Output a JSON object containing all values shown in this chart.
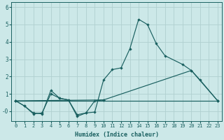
{
  "xlabel": "Humidex (Indice chaleur)",
  "background_color": "#cce8e8",
  "grid_color": "#b0d0d0",
  "line_color": "#1a6060",
  "x_values": [
    0,
    1,
    2,
    3,
    4,
    5,
    6,
    7,
    8,
    9,
    10,
    11,
    12,
    13,
    14,
    15,
    16,
    17,
    18,
    19,
    20,
    21,
    22,
    23
  ],
  "series1_x": [
    0,
    1,
    2,
    3,
    4,
    5,
    6,
    7,
    8,
    9,
    10,
    11,
    12,
    13,
    14,
    15,
    16,
    17,
    19,
    20,
    21,
    23
  ],
  "series1_y": [
    0.6,
    0.3,
    -0.1,
    -0.15,
    1.2,
    0.75,
    0.65,
    -0.3,
    -0.1,
    -0.05,
    1.8,
    2.4,
    2.5,
    3.6,
    5.3,
    5.0,
    3.9,
    3.2,
    2.7,
    2.35,
    1.8,
    0.6
  ],
  "series2_x": [
    0,
    1,
    2,
    3,
    4,
    5,
    6,
    7,
    8,
    9,
    10
  ],
  "series2_y": [
    0.6,
    0.3,
    -0.15,
    -0.1,
    1.0,
    0.75,
    0.65,
    -0.2,
    -0.1,
    0.6,
    0.65
  ],
  "series3_x": [
    0,
    10,
    20,
    23
  ],
  "series3_y": [
    0.6,
    0.65,
    2.35,
    0.6
  ],
  "series4_x": [
    0,
    23
  ],
  "series4_y": [
    0.6,
    0.6
  ],
  "ylim": [
    -0.55,
    6.3
  ],
  "yticks": [
    0,
    1,
    2,
    3,
    4,
    5,
    6
  ],
  "ytick_labels": [
    "-0",
    "1",
    "2",
    "3",
    "4",
    "5",
    "6"
  ],
  "xlim": [
    -0.5,
    23.5
  ]
}
